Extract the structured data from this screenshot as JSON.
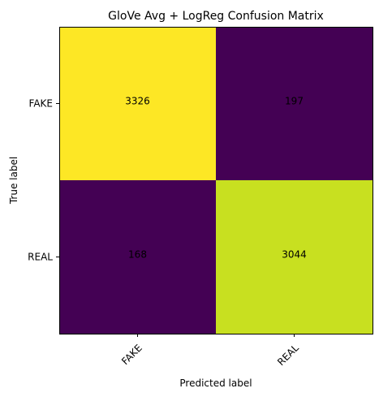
{
  "chart_data": {
    "type": "heatmap",
    "title": "GloVe Avg + LogReg Confusion Matrix",
    "xlabel": "Predicted label",
    "ylabel": "True label",
    "x_categories": [
      "FAKE",
      "REAL"
    ],
    "y_categories": [
      "FAKE",
      "REAL"
    ],
    "values": [
      [
        3326,
        197
      ],
      [
        168,
        3044
      ]
    ],
    "colormap": "viridis",
    "cell_colors": [
      [
        "#fde725",
        "#440154"
      ],
      [
        "#440154",
        "#c8e020"
      ]
    ],
    "text_color": "#000000",
    "grid": false
  }
}
